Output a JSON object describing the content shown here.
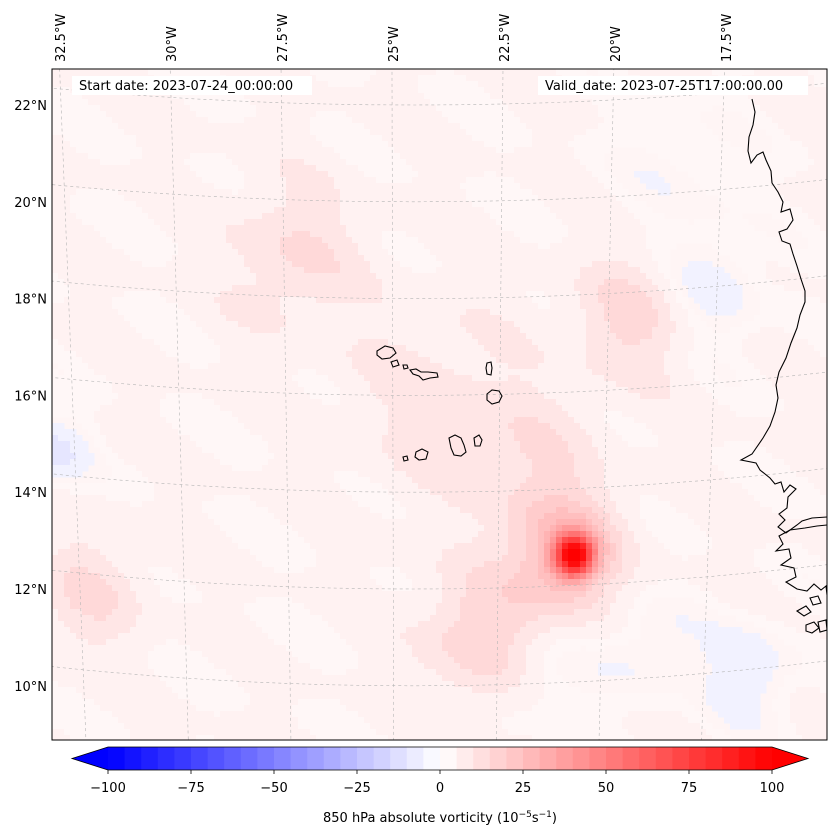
{
  "header": {
    "start_date": "Start date: 2023-07-24_00:00:00",
    "valid_date": "Valid_date: 2023-07-25T17:00:00.00"
  },
  "axes": {
    "lon_ticks": [
      {
        "value": -32.5,
        "label": "32.5°W"
      },
      {
        "value": -30.0,
        "label": "30°W"
      },
      {
        "value": -27.5,
        "label": "27.5°W"
      },
      {
        "value": -25.0,
        "label": "25°W"
      },
      {
        "value": -22.5,
        "label": "22.5°W"
      },
      {
        "value": -20.0,
        "label": "20°W"
      },
      {
        "value": -17.5,
        "label": "17.5°W"
      }
    ],
    "lat_ticks": [
      {
        "value": 22,
        "label": "22°N"
      },
      {
        "value": 20,
        "label": "20°N"
      },
      {
        "value": 18,
        "label": "18°N"
      },
      {
        "value": 16,
        "label": "16°N"
      },
      {
        "value": 14,
        "label": "14°N"
      },
      {
        "value": 12,
        "label": "12°N"
      },
      {
        "value": 10,
        "label": "10°N"
      }
    ],
    "lon_range": [
      -33.0,
      -15.5
    ],
    "lat_range": [
      8.9,
      22.7
    ],
    "gridlines": true
  },
  "colorbar": {
    "colormap": "bwr",
    "range": [
      -100,
      100
    ],
    "extend": "both",
    "ticks": [
      -100,
      -75,
      -50,
      -25,
      0,
      25,
      50,
      75,
      100
    ],
    "tick_labels": [
      "−100",
      "−75",
      "−50",
      "−25",
      "0",
      "25",
      "50",
      "75",
      "100"
    ],
    "label": "850 hPa absolute vorticity (10",
    "label_exp": "−5",
    "label_mid": "s",
    "label_exp2": "−1",
    "label_end": ")",
    "colors": {
      "low": "#0000ff",
      "mid": "#ffffff",
      "high": "#ff0000"
    }
  },
  "field": {
    "background_value": 3,
    "features": [
      {
        "lon": -20.9,
        "lat": 12.7,
        "peak": 85,
        "radius": 0.42
      },
      {
        "lon": -21.1,
        "lat": 12.7,
        "peak": 25,
        "radius": 1.2
      },
      {
        "lon": -23.0,
        "lat": 11.0,
        "peak": 14,
        "radius": 1.4
      },
      {
        "lon": -27.2,
        "lat": 18.9,
        "peak": 10,
        "radius": 1.5
      },
      {
        "lon": -19.6,
        "lat": 17.6,
        "peak": 12,
        "radius": 1.3
      },
      {
        "lon": -31.8,
        "lat": 11.9,
        "peak": 10,
        "radius": 1.2
      },
      {
        "lon": -21.8,
        "lat": 14.6,
        "peak": 8,
        "radius": 1.4
      },
      {
        "lon": -24.0,
        "lat": 16.0,
        "peak": 7,
        "radius": 2.0
      },
      {
        "lon": -32.6,
        "lat": 14.8,
        "peak": -12,
        "radius": 0.7
      },
      {
        "lon": -17.8,
        "lat": 18.2,
        "peak": -8,
        "radius": 1.2
      },
      {
        "lon": -17.0,
        "lat": 10.3,
        "peak": -9,
        "radius": 1.1
      },
      {
        "lon": -19.3,
        "lat": 10.8,
        "peak": -7,
        "radius": 1.0
      },
      {
        "lon": -21.6,
        "lat": 10.2,
        "peak": -6,
        "radius": 1.1
      },
      {
        "lon": -18.5,
        "lat": 20.7,
        "peak": -4,
        "radius": 1.5
      }
    ]
  }
}
